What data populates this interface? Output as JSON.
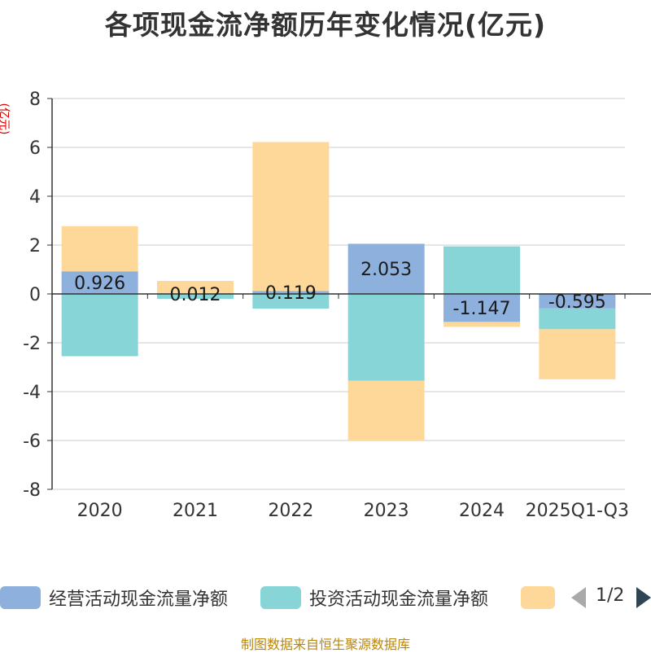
{
  "title": "各项现金流净额历年变化情况(亿元)",
  "unit_label": "(亿元)",
  "legend": {
    "items": [
      {
        "label": "经营活动现金流量净额",
        "color": "#8eb0dc"
      },
      {
        "label": "投资活动现金流量净额",
        "color": "#88d5d8"
      },
      {
        "label": "",
        "color": "#fdd898"
      }
    ],
    "page_text": "1/2"
  },
  "footer": "制图数据来自恒生聚源数据库",
  "colors": {
    "operating": "#8eb0dc",
    "investing": "#88d5d8",
    "financing": "#fdd898",
    "axis": "#333333",
    "grid": "#cccccc"
  },
  "chart_data": {
    "type": "bar",
    "stacked": true,
    "categories": [
      "2020",
      "2021",
      "2022",
      "2023",
      "2024",
      "2025Q1-Q3"
    ],
    "ylim": [
      -8,
      8
    ],
    "yticks": [
      8,
      6,
      4,
      2,
      0,
      -2,
      -4,
      -6,
      -8
    ],
    "grid": true,
    "legend_position": "bottom",
    "series": [
      {
        "name": "经营活动现金流量净额",
        "values": [
          0.926,
          0.012,
          0.119,
          2.053,
          -1.147,
          -0.595
        ]
      },
      {
        "name": "投资活动现金流量净额",
        "values": [
          -2.55,
          -0.2,
          -0.6,
          -3.55,
          1.95,
          -0.85
        ]
      },
      {
        "values": [
          1.85,
          0.52,
          6.1,
          -2.45,
          -0.2,
          -2.05
        ]
      }
    ],
    "data_labels": [
      "0.926",
      "0.012",
      "0.119",
      "2.053",
      "-1.147",
      "-0.595"
    ]
  }
}
